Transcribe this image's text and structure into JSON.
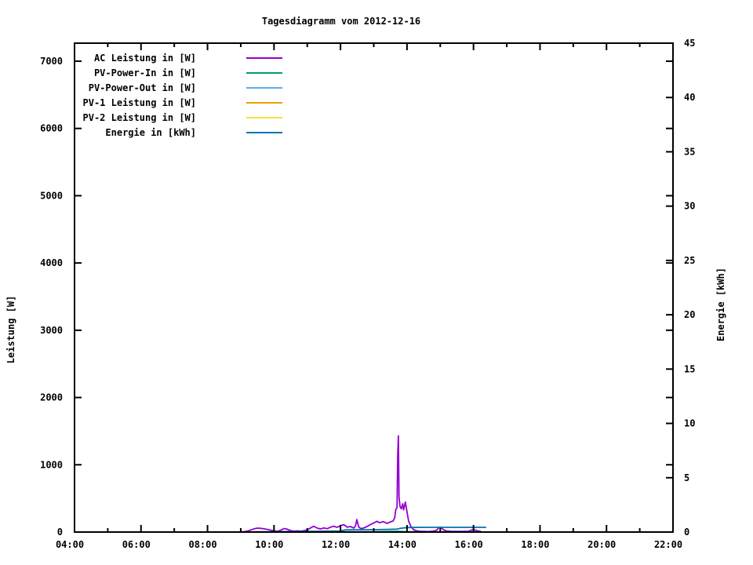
{
  "chart_data": {
    "type": "line",
    "title": "Tagesdiagramm vom 2012-12-16",
    "legend_position": "top-left",
    "grid": false,
    "x_axis": {
      "unit": "time",
      "range_hours": [
        4,
        22
      ],
      "major_tick_hours": [
        4,
        6,
        8,
        10,
        12,
        14,
        16,
        18,
        20,
        22
      ],
      "major_tick_labels": [
        "04:00",
        "06:00",
        "08:00",
        "10:00",
        "12:00",
        "14:00",
        "16:00",
        "18:00",
        "20:00",
        "22:00"
      ],
      "minor_tick_hours": [
        5,
        7,
        9,
        11,
        13,
        15,
        17,
        19,
        21
      ]
    },
    "y_left": {
      "label": "Leistung [W]",
      "ticks": [
        0,
        1000,
        2000,
        3000,
        4000,
        5000,
        6000,
        7000
      ],
      "range": [
        0,
        7268
      ]
    },
    "y_right": {
      "label": "Energie [kWh]",
      "ticks": [
        0,
        5,
        10,
        15,
        20,
        25,
        30,
        35,
        40,
        45
      ],
      "range": [
        0,
        45
      ]
    },
    "series": [
      {
        "name": "AC Leistung in [W]",
        "color": "#9400D3",
        "axis": "left",
        "points": [
          [
            9.02,
            2
          ],
          [
            9.1,
            6
          ],
          [
            9.2,
            14
          ],
          [
            9.3,
            32
          ],
          [
            9.42,
            50
          ],
          [
            9.5,
            58
          ],
          [
            9.6,
            55
          ],
          [
            9.7,
            48
          ],
          [
            9.8,
            40
          ],
          [
            9.9,
            28
          ],
          [
            10.0,
            17
          ],
          [
            10.1,
            12
          ],
          [
            10.2,
            26
          ],
          [
            10.3,
            52
          ],
          [
            10.38,
            46
          ],
          [
            10.5,
            22
          ],
          [
            10.6,
            14
          ],
          [
            10.7,
            18
          ],
          [
            10.8,
            14
          ],
          [
            10.9,
            20
          ],
          [
            11.0,
            30
          ],
          [
            11.1,
            62
          ],
          [
            11.2,
            86
          ],
          [
            11.3,
            58
          ],
          [
            11.4,
            45
          ],
          [
            11.5,
            62
          ],
          [
            11.6,
            50
          ],
          [
            11.7,
            72
          ],
          [
            11.8,
            86
          ],
          [
            11.9,
            70
          ],
          [
            12.0,
            96
          ],
          [
            12.1,
            110
          ],
          [
            12.2,
            72
          ],
          [
            12.3,
            82
          ],
          [
            12.4,
            60
          ],
          [
            12.45,
            92
          ],
          [
            12.49,
            185
          ],
          [
            12.55,
            72
          ],
          [
            12.62,
            50
          ],
          [
            12.7,
            62
          ],
          [
            12.8,
            82
          ],
          [
            12.9,
            112
          ],
          [
            13.0,
            135
          ],
          [
            13.1,
            160
          ],
          [
            13.18,
            138
          ],
          [
            13.28,
            155
          ],
          [
            13.4,
            128
          ],
          [
            13.5,
            150
          ],
          [
            13.58,
            165
          ],
          [
            13.63,
            210
          ],
          [
            13.66,
            330
          ],
          [
            13.7,
            365
          ],
          [
            13.72,
            1120
          ],
          [
            13.74,
            1430
          ],
          [
            13.76,
            520
          ],
          [
            13.79,
            380
          ],
          [
            13.83,
            345
          ],
          [
            13.87,
            420
          ],
          [
            13.9,
            330
          ],
          [
            13.95,
            445
          ],
          [
            14.0,
            300
          ],
          [
            14.05,
            160
          ],
          [
            14.12,
            80
          ],
          [
            14.2,
            35
          ],
          [
            14.3,
            18
          ],
          [
            14.4,
            12
          ],
          [
            14.5,
            10
          ],
          [
            14.6,
            8
          ],
          [
            14.7,
            10
          ],
          [
            14.8,
            14
          ],
          [
            14.9,
            30
          ],
          [
            14.95,
            62
          ],
          [
            15.0,
            70
          ],
          [
            15.05,
            52
          ],
          [
            15.12,
            28
          ],
          [
            15.2,
            15
          ],
          [
            15.35,
            10
          ],
          [
            15.5,
            9
          ],
          [
            15.7,
            10
          ],
          [
            15.85,
            12
          ],
          [
            15.95,
            30
          ],
          [
            16.02,
            35
          ],
          [
            16.08,
            24
          ],
          [
            16.15,
            14
          ],
          [
            16.22,
            12
          ]
        ]
      },
      {
        "name": "PV-Power-In in [W]",
        "color": "#009E73",
        "axis": "left",
        "points": [
          [
            9.02,
            0
          ],
          [
            10,
            2
          ],
          [
            11,
            3
          ],
          [
            12,
            4
          ],
          [
            12.5,
            5
          ],
          [
            13,
            5
          ],
          [
            13.74,
            10
          ],
          [
            14,
            5
          ],
          [
            14.5,
            3
          ],
          [
            15,
            2
          ],
          [
            15.5,
            2
          ],
          [
            16,
            2
          ],
          [
            16.3,
            0
          ]
        ]
      },
      {
        "name": "PV-Power-Out in [W]",
        "color": "#56B4E9",
        "axis": "left",
        "points": [
          [
            9.02,
            0
          ],
          [
            10,
            0
          ],
          [
            11,
            0
          ],
          [
            12,
            1
          ],
          [
            13,
            1
          ],
          [
            14,
            1
          ],
          [
            15,
            0
          ],
          [
            16,
            0
          ],
          [
            16.3,
            0
          ]
        ]
      },
      {
        "name": "PV-1 Leistung in [W]",
        "color": "#E69F00",
        "axis": "left",
        "points": [
          [
            9.02,
            0
          ],
          [
            12,
            0
          ],
          [
            16.3,
            0
          ]
        ]
      },
      {
        "name": "PV-2 Leistung in [W]",
        "color": "#F0E442",
        "axis": "left",
        "points": [
          [
            9.02,
            0
          ],
          [
            12,
            0
          ],
          [
            16.3,
            0
          ]
        ]
      },
      {
        "name": "Energie in [kWh]",
        "color": "#0072B2",
        "axis": "right",
        "points": [
          [
            9.02,
            0
          ],
          [
            9.5,
            0.02
          ],
          [
            10.0,
            0.03
          ],
          [
            10.5,
            0.05
          ],
          [
            11.0,
            0.06
          ],
          [
            11.5,
            0.08
          ],
          [
            12.0,
            0.1
          ],
          [
            12.15,
            0.2
          ],
          [
            12.5,
            0.21
          ],
          [
            13.0,
            0.22
          ],
          [
            13.4,
            0.24
          ],
          [
            13.7,
            0.27
          ],
          [
            13.8,
            0.34
          ],
          [
            13.95,
            0.4
          ],
          [
            14.1,
            0.42
          ],
          [
            14.5,
            0.43
          ],
          [
            15.0,
            0.43
          ],
          [
            15.5,
            0.43
          ],
          [
            16.0,
            0.43
          ],
          [
            16.38,
            0.43
          ]
        ]
      }
    ]
  }
}
